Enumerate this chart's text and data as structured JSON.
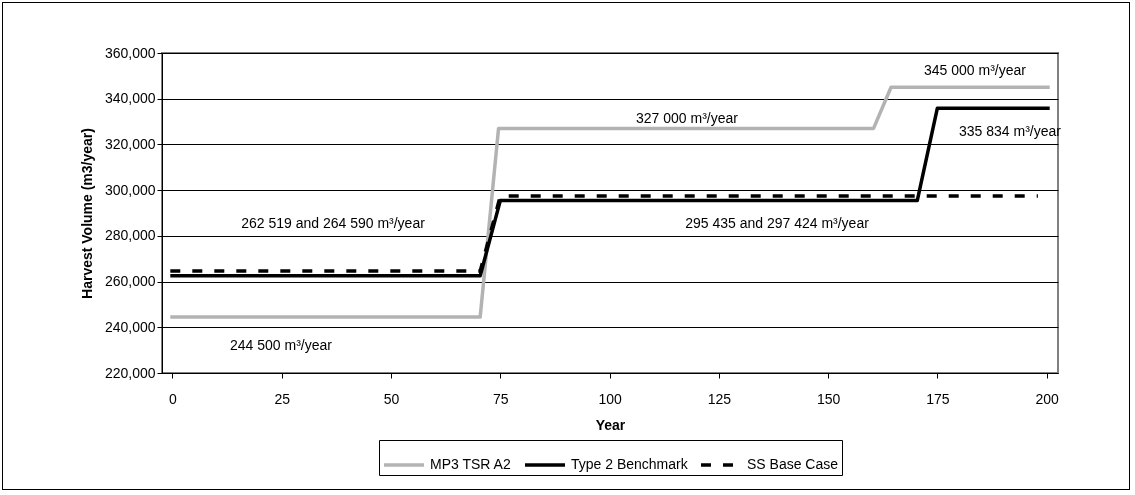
{
  "chart_data": {
    "type": "line",
    "xlabel": "Year",
    "ylabel": "Harvest Volume (m3/year)",
    "xlim": [
      -2.4,
      202.6
    ],
    "xticks": [
      0,
      25,
      50,
      75,
      100,
      125,
      150,
      175,
      200
    ],
    "ylim": [
      220000,
      360000
    ],
    "yticks": [
      {
        "value": 220000,
        "label": "220,000"
      },
      {
        "value": 240000,
        "label": "240,000"
      },
      {
        "value": 260000,
        "label": "260,000"
      },
      {
        "value": 280000,
        "label": "280,000"
      },
      {
        "value": 300000,
        "label": "300,000"
      },
      {
        "value": 320000,
        "label": "320,000"
      },
      {
        "value": 340000,
        "label": "340,000"
      },
      {
        "value": 360000,
        "label": "360,000"
      }
    ],
    "grid": "y",
    "legend": "bottom",
    "series": [
      {
        "name": "MP3 TSR A2",
        "color": "#b3b3b3",
        "line_style": "solid",
        "x": [
          -0.5,
          70.4,
          74.6,
          160.4,
          164.4,
          200.7
        ],
        "values": [
          244500,
          244500,
          327000,
          327000,
          345000,
          345000
        ]
      },
      {
        "name": "Type 2 Benchmark",
        "color": "#000000",
        "line_style": "solid",
        "x": [
          -0.5,
          70.4,
          75,
          170.4,
          175,
          200.7
        ],
        "values": [
          262519,
          262519,
          295435,
          295435,
          335834,
          335834
        ]
      },
      {
        "name": "SS Base Case",
        "color": "#000000",
        "line_style": "dashed",
        "x": [
          -0.5,
          70.4,
          75,
          198
        ],
        "values": [
          264590,
          264590,
          297424,
          297424
        ]
      }
    ],
    "annotations": [
      "262 519 and 264 590 m³/year",
      "244 500 m³/year",
      "327 000 m³/year",
      "345 000 m³/year",
      "335 834 m³/year",
      "295 435 and 297 424 m³/year"
    ]
  }
}
